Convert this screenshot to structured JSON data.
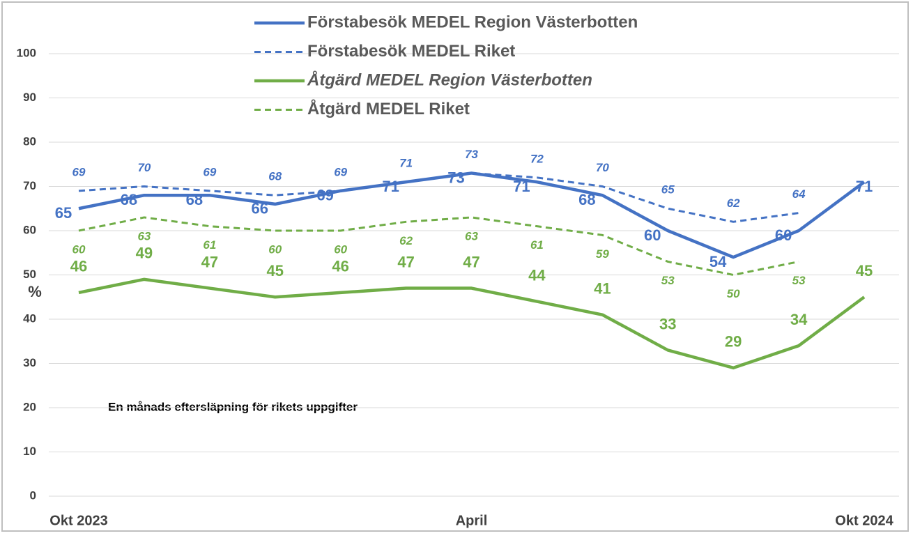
{
  "chart_data": {
    "type": "line",
    "ylabel": "%",
    "annotation": "En månads eftersläpning för rikets uppgifter",
    "categories": [
      "Okt 2023",
      null,
      null,
      null,
      null,
      null,
      "April",
      null,
      null,
      null,
      null,
      null,
      "Okt 2024"
    ],
    "series": [
      {
        "name": "Förstabesök MEDEL Region Västerbotten",
        "color": "#4472c4",
        "style": "solid",
        "values": [
          65,
          68,
          68,
          66,
          69,
          71,
          73,
          71,
          68,
          60,
          54,
          60,
          71
        ]
      },
      {
        "name": "Förstabesök MEDEL Riket",
        "color": "#4472c4",
        "style": "dashed",
        "values": [
          69,
          70,
          69,
          68,
          69,
          71,
          73,
          72,
          70,
          65,
          62,
          64,
          null
        ]
      },
      {
        "name": "Åtgärd MEDEL Region Västerbotten",
        "color": "#70ad47",
        "style": "solid",
        "values": [
          46,
          49,
          47,
          45,
          46,
          47,
          47,
          44,
          41,
          33,
          29,
          34,
          45
        ]
      },
      {
        "name": "Åtgärd MEDEL Riket",
        "color": "#70ad47",
        "style": "dashed",
        "values": [
          60,
          63,
          61,
          60,
          60,
          62,
          63,
          61,
          59,
          53,
          50,
          53,
          null
        ]
      }
    ],
    "ylim": [
      0,
      100
    ],
    "yticks": [
      0,
      10,
      20,
      30,
      40,
      50,
      60,
      70,
      80,
      90,
      100
    ],
    "grid": true
  }
}
